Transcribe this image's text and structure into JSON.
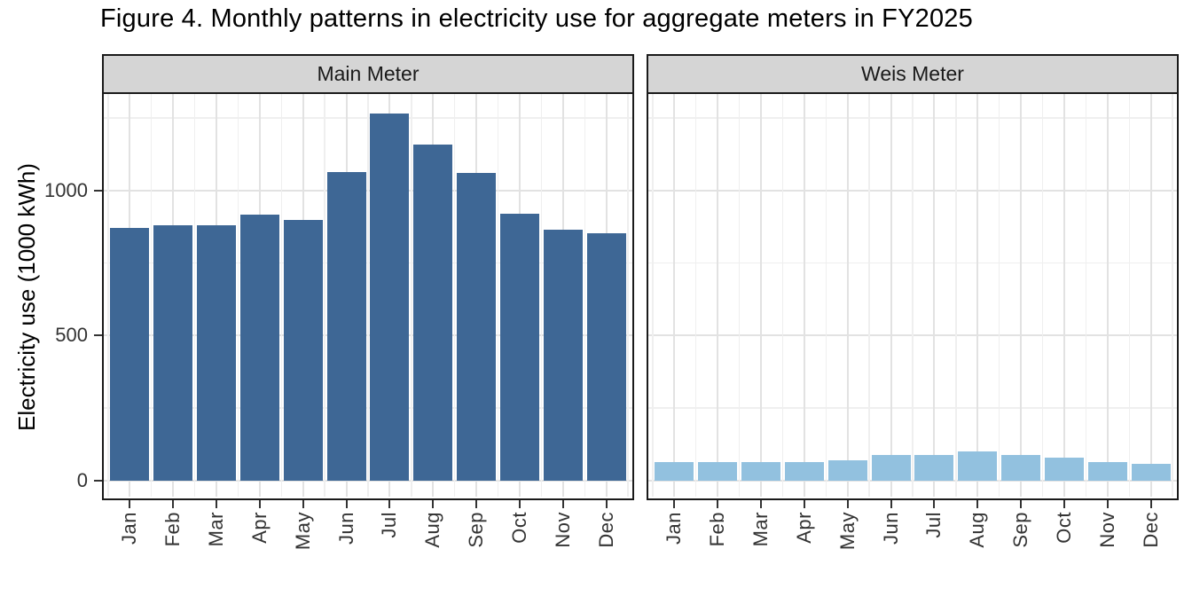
{
  "chart_data": {
    "type": "bar",
    "title": "Figure 4. Monthly patterns in electricity use for aggregate meters in FY2025",
    "xlabel": "",
    "ylabel": "Electricity use (1000 kWh)",
    "categories": [
      "Jan",
      "Feb",
      "Mar",
      "Apr",
      "May",
      "Jun",
      "Jul",
      "Aug",
      "Sep",
      "Oct",
      "Nov",
      "Dec"
    ],
    "y_tick_labels": [
      "0",
      "500",
      "1000"
    ],
    "y_major": [
      0,
      500,
      1000
    ],
    "y_minor": [
      250,
      750,
      1250
    ],
    "ylim": [
      0,
      1330
    ],
    "grid": true,
    "legend": "none",
    "facets": [
      {
        "label": "Main Meter",
        "color": "#3e6795",
        "values": [
          870,
          880,
          881,
          918,
          899,
          1063,
          1265,
          1157,
          1062,
          919,
          864,
          851
        ]
      },
      {
        "label": "Weis Meter",
        "color": "#92c1df",
        "values": [
          64,
          64,
          64,
          64,
          68,
          88,
          88,
          100,
          86,
          79,
          62,
          58
        ]
      }
    ]
  },
  "colors": {
    "bar_main": "#3e6795",
    "bar_weis": "#92c1df",
    "strip_bg": "#d5d5d5",
    "panel_border": "#1a1a1a",
    "grid_major": "#e2e2e2",
    "grid_minor": "#efefef",
    "axis_text": "#333333",
    "title_text": "#000000"
  }
}
